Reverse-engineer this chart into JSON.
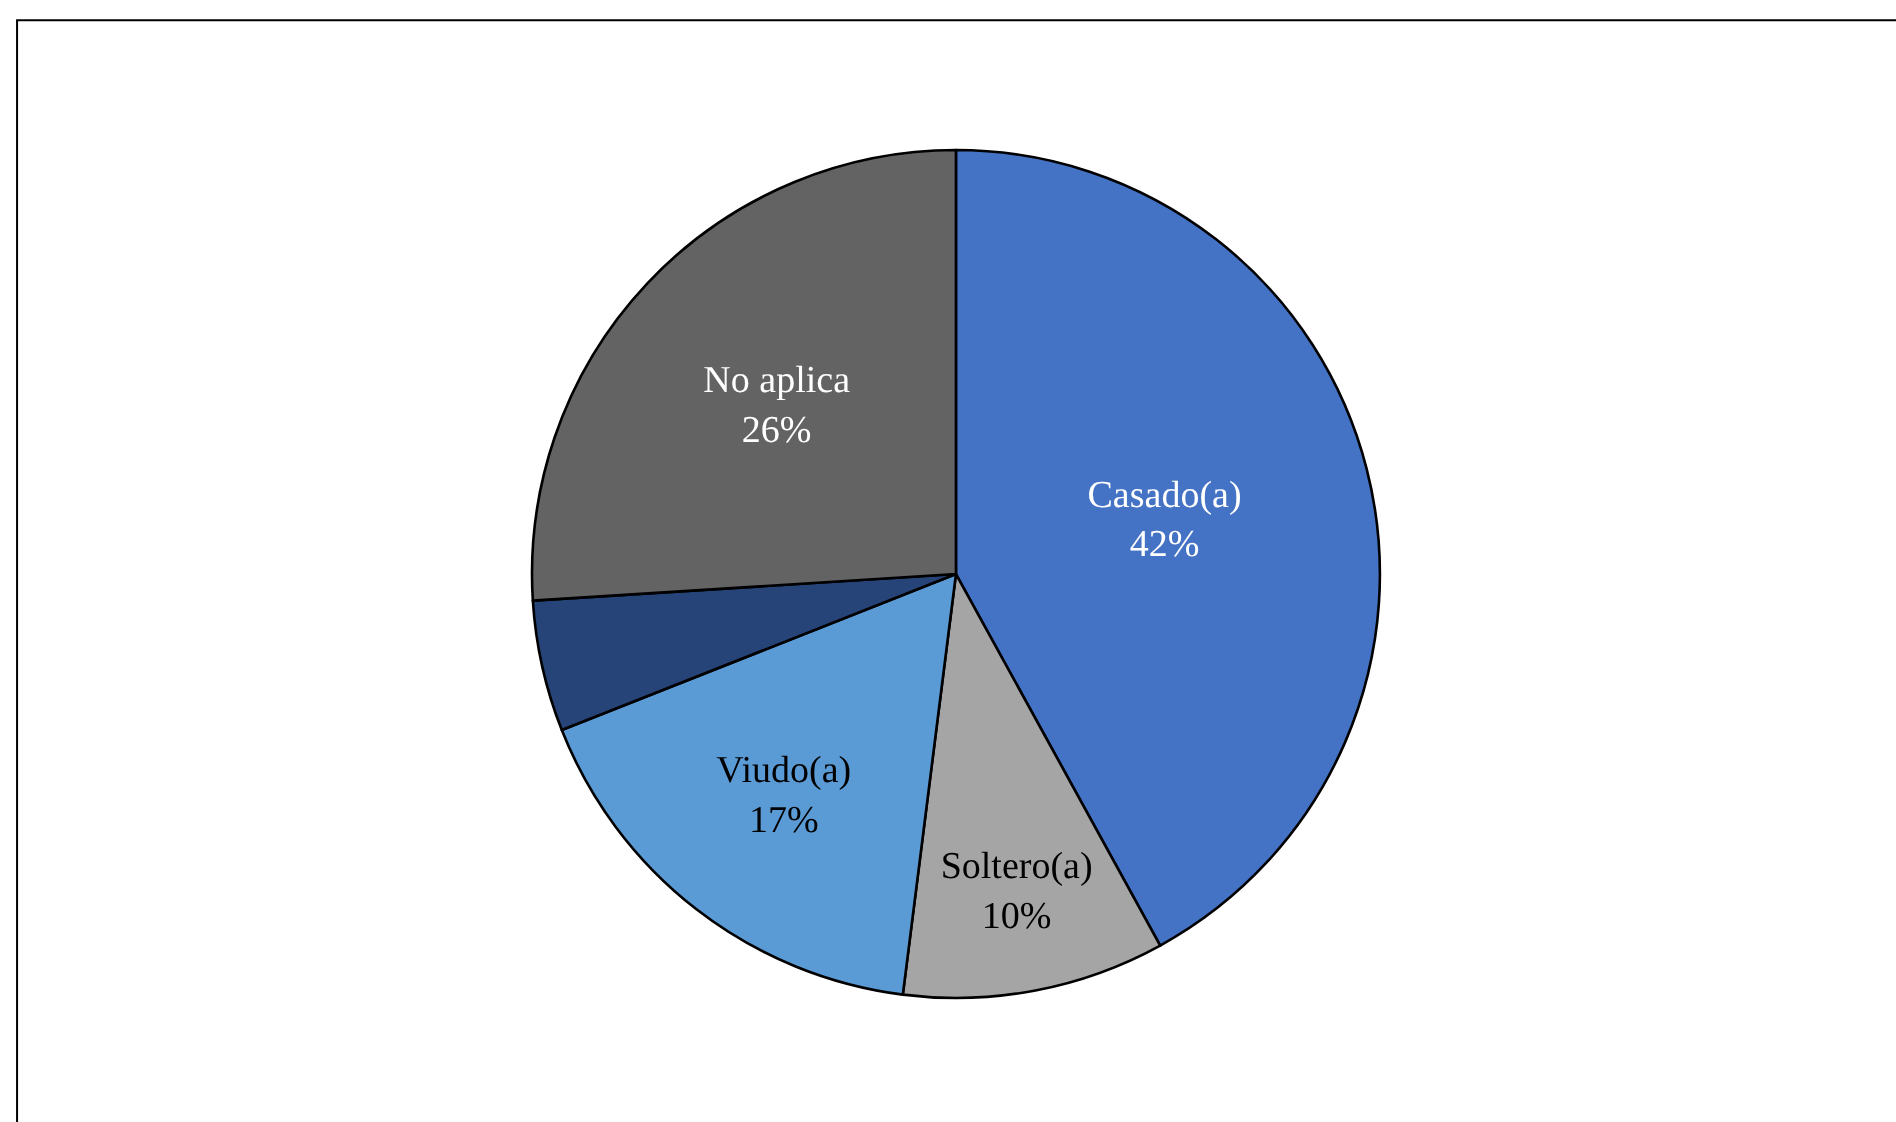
{
  "chart_data": {
    "type": "pie",
    "categories": [
      "Casado(a)",
      "Soltero(a)",
      "Viudo(a)",
      null,
      "No aplica"
    ],
    "values": [
      42,
      10,
      17,
      5,
      26
    ],
    "value_labels": [
      "42%",
      "10%",
      "17%",
      null,
      "26%"
    ],
    "colors": [
      "#4472c4",
      "#a5a5a5",
      "#5b9bd5",
      "#264478",
      "#636363"
    ]
  }
}
